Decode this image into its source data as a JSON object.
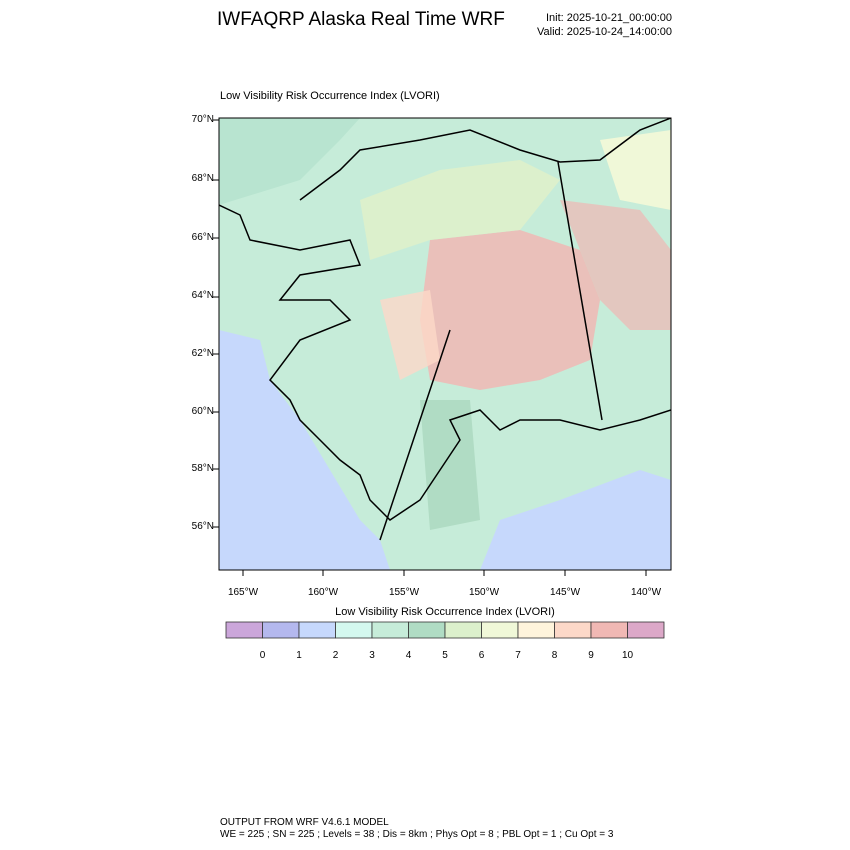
{
  "header": {
    "title": "IWFAQRP Alaska Real Time WRF",
    "init": "Init: 2025-10-21_00:00:00",
    "valid": "Valid: 2025-10-24_14:00:00"
  },
  "chart_data": {
    "type": "heatmap",
    "title": "Low Visibility Risk Occurrence Index   (LVORI)",
    "projection": "map of Alaska",
    "lat_ticks": [
      "70°N",
      "68°N",
      "66°N",
      "64°N",
      "62°N",
      "60°N",
      "58°N",
      "56°N"
    ],
    "lon_ticks": [
      "165°W",
      "160°W",
      "155°W",
      "150°W",
      "145°W",
      "140°W"
    ],
    "colorbar": {
      "title": "Low Visibility Risk Occurrence Index  (LVORI)",
      "labels": [
        "0",
        "1",
        "2",
        "3",
        "4",
        "5",
        "6",
        "7",
        "8",
        "9",
        "10"
      ],
      "colors": [
        "#cba6da",
        "#b4b8ee",
        "#c6d8fc",
        "#d4f8ef",
        "#c6ecd9",
        "#b0dcc4",
        "#dcf0cc",
        "#f0f8d8",
        "#fff4dc",
        "#fcd8c8",
        "#f0b8b4",
        "#dca8c8"
      ]
    }
  },
  "footer": {
    "line1": "OUTPUT FROM WRF V4.6.1 MODEL",
    "line2": "WE = 225 ; SN = 225 ; Levels = 38 ; Dis = 8km ; Phys Opt = 8 ; PBL Opt = 1 ; Cu Opt = 3"
  }
}
